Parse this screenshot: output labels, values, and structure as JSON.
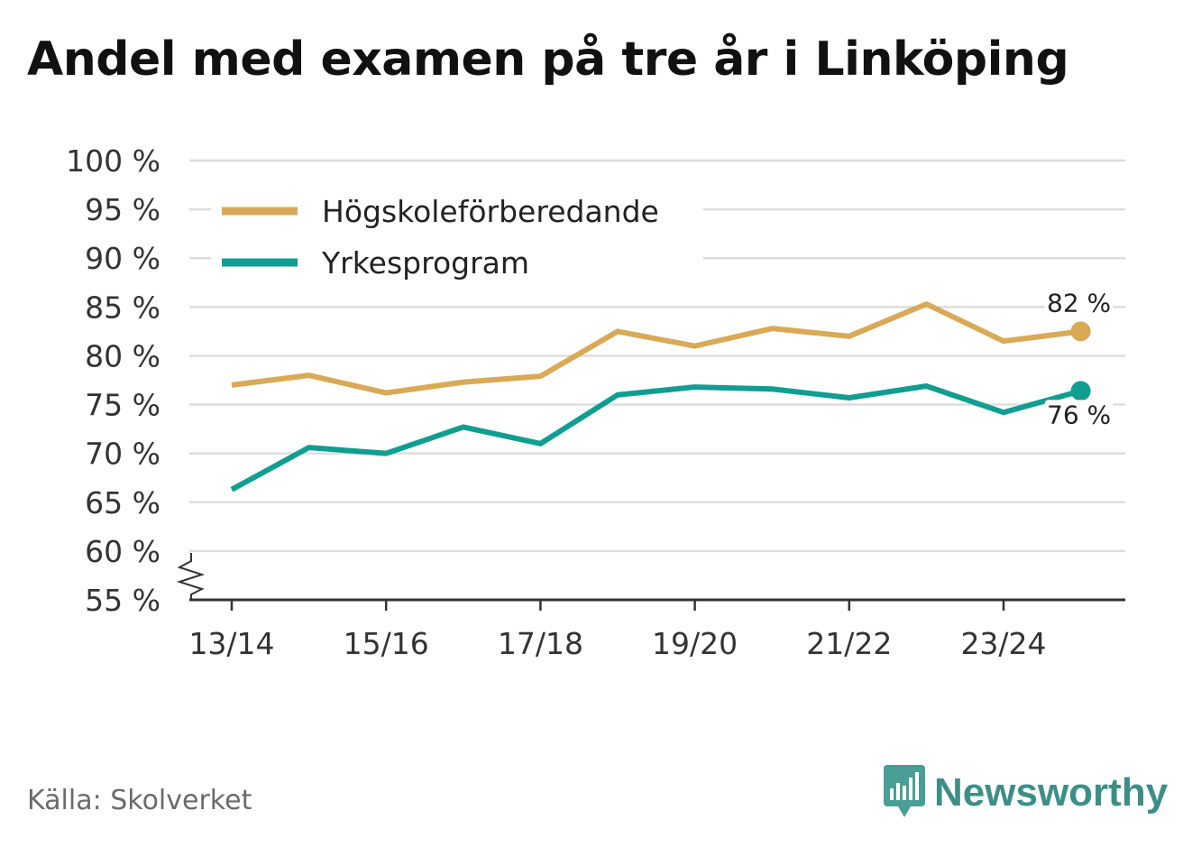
{
  "title": "Andel med examen på tre år i Linköping",
  "source": "Källa: Skolverket",
  "brand": {
    "name": "Newsworthy",
    "icon": "newsworthy-logo-icon",
    "color": "#3b8f87"
  },
  "chart_data": {
    "type": "line",
    "title": "Andel med examen på tre år i Linköping",
    "xlabel": "",
    "ylabel": "",
    "ylim": [
      55,
      100
    ],
    "y_ticks": [
      100,
      95,
      90,
      85,
      80,
      75,
      70,
      65,
      60,
      55
    ],
    "y_tick_labels": [
      "100 %",
      "95 %",
      "90 %",
      "85 %",
      "80 %",
      "75 %",
      "70 %",
      "65 %",
      "60 %",
      "55 %"
    ],
    "categories": [
      "13/14",
      "14/15",
      "15/16",
      "16/17",
      "17/18",
      "18/19",
      "19/20",
      "20/21",
      "21/22",
      "22/23",
      "23/24",
      "24/25"
    ],
    "x_tick_labels": [
      "13/14",
      "15/16",
      "17/18",
      "19/20",
      "21/22",
      "23/24"
    ],
    "axis_break": true,
    "grid": true,
    "legend_position": "top-left",
    "series": [
      {
        "name": "Högskoleförberedande",
        "color": "#d9a956",
        "values": [
          77.0,
          78.0,
          76.2,
          77.3,
          77.9,
          82.5,
          81.0,
          82.8,
          82.0,
          85.3,
          81.5,
          82.5
        ],
        "end_label": "82 %"
      },
      {
        "name": "Yrkesprogram",
        "color": "#0f9e91",
        "values": [
          66.3,
          70.6,
          70.0,
          72.7,
          71.0,
          76.0,
          76.8,
          76.6,
          75.7,
          76.9,
          74.2,
          76.4
        ],
        "end_label": "76 %"
      }
    ]
  }
}
